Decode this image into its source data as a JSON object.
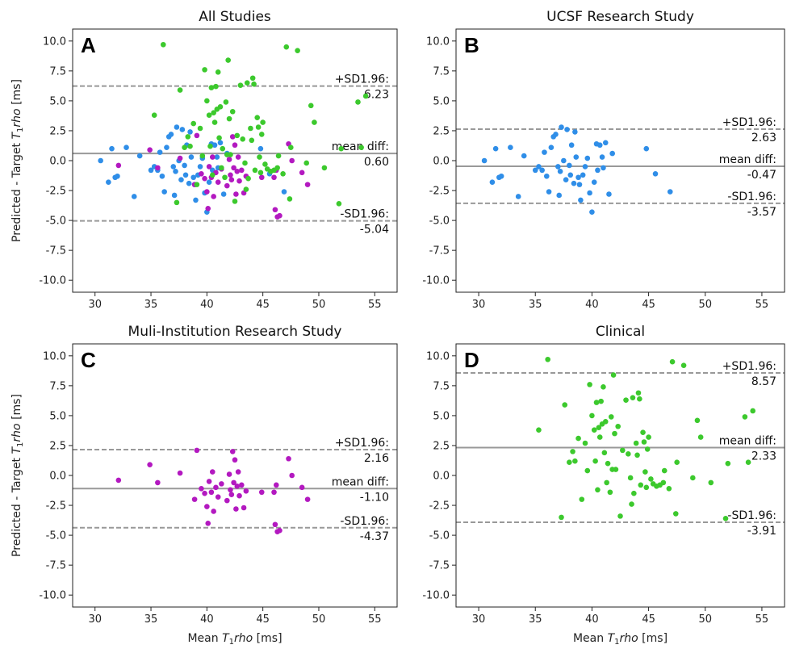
{
  "colors": {
    "ucsf": "#2f8ee8",
    "multi": "#b319c0",
    "clinical": "#3cc92d",
    "line": "#999999"
  },
  "axis_labels": {
    "y_prefix": "Predicted - Target ",
    "x_prefix": "Mean ",
    "sym_T": "T",
    "sym_sub": "1",
    "sym_rho": "rho",
    "unit": " [ms]"
  },
  "chart_data": [
    {
      "id": "A",
      "letter": "A",
      "title": "All Studies",
      "type": "scatter",
      "xlim": [
        28,
        57
      ],
      "ylim": [
        -11,
        11
      ],
      "xticks": [
        "30",
        "35",
        "40",
        "45",
        "50",
        "55"
      ],
      "yticks": [
        "10.0",
        "7.5",
        "5.0",
        "2.5",
        "0.0",
        "-2.5",
        "-5.0",
        "-7.5",
        "-10.0"
      ],
      "show_ylabel": true,
      "show_xlabel": false,
      "series_ref": [
        "ucsf",
        "multi",
        "clinical"
      ],
      "upper": {
        "label": "+SD1.96:",
        "value": "6.23",
        "y": 6.23
      },
      "mean": {
        "label": "mean diff:",
        "value": "0.60",
        "y": 0.6
      },
      "lower": {
        "label": "-SD1.96:",
        "value": "-5.04",
        "y": -5.04
      }
    },
    {
      "id": "B",
      "letter": "B",
      "title": "UCSF Research Study",
      "type": "scatter",
      "xlim": [
        28,
        57
      ],
      "ylim": [
        -11,
        11
      ],
      "xticks": [
        "30",
        "35",
        "40",
        "45",
        "50",
        "55"
      ],
      "yticks": [
        "10.0",
        "7.5",
        "5.0",
        "2.5",
        "0.0",
        "-2.5",
        "-5.0",
        "-7.5",
        "-10.0"
      ],
      "show_ylabel": false,
      "show_xlabel": false,
      "series_ref": [
        "ucsf"
      ],
      "upper": {
        "label": "+SD1.96:",
        "value": "2.63",
        "y": 2.63
      },
      "mean": {
        "label": "mean diff:",
        "value": "-0.47",
        "y": -0.47
      },
      "lower": {
        "label": "-SD1.96:",
        "value": "-3.57",
        "y": -3.57
      }
    },
    {
      "id": "C",
      "letter": "C",
      "title": "Muli-Institution Research Study",
      "type": "scatter",
      "xlim": [
        28,
        57
      ],
      "ylim": [
        -11,
        11
      ],
      "xticks": [
        "30",
        "35",
        "40",
        "45",
        "50",
        "55"
      ],
      "yticks": [
        "10.0",
        "7.5",
        "5.0",
        "2.5",
        "0.0",
        "-2.5",
        "-5.0",
        "-7.5",
        "-10.0"
      ],
      "show_ylabel": true,
      "show_xlabel": true,
      "series_ref": [
        "multi"
      ],
      "upper": {
        "label": "+SD1.96:",
        "value": "2.16",
        "y": 2.16
      },
      "mean": {
        "label": "mean diff:",
        "value": "-1.10",
        "y": -1.1
      },
      "lower": {
        "label": "-SD1.96:",
        "value": "-4.37",
        "y": -4.37
      }
    },
    {
      "id": "D",
      "letter": "D",
      "title": "Clinical",
      "type": "scatter",
      "xlim": [
        28,
        57
      ],
      "ylim": [
        -11,
        11
      ],
      "xticks": [
        "30",
        "35",
        "40",
        "45",
        "50",
        "55"
      ],
      "yticks": [
        "10.0",
        "7.5",
        "5.0",
        "2.5",
        "0.0",
        "-2.5",
        "-5.0",
        "-7.5",
        "-10.0"
      ],
      "show_ylabel": false,
      "show_xlabel": true,
      "series_ref": [
        "clinical"
      ],
      "upper": {
        "label": "+SD1.96:",
        "value": "8.57",
        "y": 8.57
      },
      "mean": {
        "label": "mean diff:",
        "value": "2.33",
        "y": 2.33
      },
      "lower": {
        "label": "-SD1.96:",
        "value": "-3.91",
        "y": -3.91
      }
    }
  ],
  "series": {
    "ucsf": [
      [
        30.5,
        0.0
      ],
      [
        31.2,
        -1.8
      ],
      [
        31.5,
        1.0
      ],
      [
        31.8,
        -1.4
      ],
      [
        32.0,
        -1.3
      ],
      [
        32.8,
        1.1
      ],
      [
        33.5,
        -3.0
      ],
      [
        34.0,
        0.4
      ],
      [
        35.0,
        -0.8
      ],
      [
        35.3,
        -0.5
      ],
      [
        35.6,
        -0.8
      ],
      [
        35.8,
        0.7
      ],
      [
        36.0,
        -1.3
      ],
      [
        36.2,
        -2.6
      ],
      [
        36.4,
        1.1
      ],
      [
        36.6,
        2.0
      ],
      [
        36.8,
        2.2
      ],
      [
        37.0,
        -0.5
      ],
      [
        37.1,
        -2.9
      ],
      [
        37.2,
        -0.9
      ],
      [
        37.3,
        2.8
      ],
      [
        37.5,
        0.0
      ],
      [
        37.7,
        -1.6
      ],
      [
        37.8,
        2.6
      ],
      [
        38.0,
        -0.4
      ],
      [
        38.1,
        -1.2
      ],
      [
        38.2,
        1.3
      ],
      [
        38.4,
        -1.9
      ],
      [
        38.5,
        2.4
      ],
      [
        38.6,
        0.3
      ],
      [
        38.8,
        -1.4
      ],
      [
        38.9,
        -2.0
      ],
      [
        39.0,
        -3.3
      ],
      [
        39.2,
        -1.2
      ],
      [
        39.4,
        -0.5
      ],
      [
        39.6,
        0.2
      ],
      [
        39.8,
        -2.7
      ],
      [
        40.0,
        -4.3
      ],
      [
        40.2,
        -1.8
      ],
      [
        40.4,
        1.4
      ],
      [
        40.5,
        -0.8
      ],
      [
        40.7,
        1.3
      ],
      [
        40.9,
        0.3
      ],
      [
        41.0,
        -0.6
      ],
      [
        41.2,
        1.5
      ],
      [
        41.5,
        -2.8
      ],
      [
        41.8,
        0.6
      ],
      [
        44.8,
        1.0
      ],
      [
        45.6,
        -1.1
      ],
      [
        46.9,
        -2.6
      ]
    ],
    "multi": [
      [
        32.1,
        -0.4
      ],
      [
        34.9,
        0.9
      ],
      [
        35.6,
        -0.6
      ],
      [
        37.6,
        0.2
      ],
      [
        38.9,
        -2.0
      ],
      [
        39.1,
        2.1
      ],
      [
        39.5,
        -1.1
      ],
      [
        39.8,
        -1.5
      ],
      [
        40.0,
        -2.6
      ],
      [
        40.1,
        -4.0
      ],
      [
        40.2,
        -0.5
      ],
      [
        40.4,
        -1.4
      ],
      [
        40.5,
        0.3
      ],
      [
        40.6,
        -3.0
      ],
      [
        40.8,
        -1.0
      ],
      [
        41.0,
        -1.8
      ],
      [
        41.3,
        -0.7
      ],
      [
        41.8,
        -2.1
      ],
      [
        42.0,
        0.1
      ],
      [
        42.1,
        -1.2
      ],
      [
        42.2,
        -1.6
      ],
      [
        42.3,
        2.0
      ],
      [
        42.4,
        -0.6
      ],
      [
        42.5,
        1.3
      ],
      [
        42.6,
        -2.8
      ],
      [
        42.7,
        -0.9
      ],
      [
        42.8,
        0.3
      ],
      [
        42.9,
        -1.7
      ],
      [
        43.1,
        -0.8
      ],
      [
        43.3,
        -2.7
      ],
      [
        43.5,
        -1.3
      ],
      [
        44.9,
        -1.4
      ],
      [
        46.0,
        -1.4
      ],
      [
        46.1,
        -4.1
      ],
      [
        46.2,
        -0.8
      ],
      [
        46.3,
        -4.7
      ],
      [
        46.5,
        -4.6
      ],
      [
        47.3,
        1.4
      ],
      [
        47.6,
        0.0
      ],
      [
        48.5,
        -1.0
      ],
      [
        49.0,
        -2.0
      ]
    ],
    "clinical": [
      [
        35.3,
        3.8
      ],
      [
        36.1,
        9.7
      ],
      [
        37.3,
        -3.5
      ],
      [
        37.6,
        5.9
      ],
      [
        38.0,
        1.1
      ],
      [
        38.3,
        2.0
      ],
      [
        38.5,
        1.2
      ],
      [
        38.8,
        3.1
      ],
      [
        39.1,
        -2.0
      ],
      [
        39.4,
        2.7
      ],
      [
        39.6,
        0.4
      ],
      [
        39.8,
        7.6
      ],
      [
        40.0,
        5.0
      ],
      [
        40.2,
        3.8
      ],
      [
        40.3,
        1.2
      ],
      [
        40.4,
        6.1
      ],
      [
        40.5,
        -1.2
      ],
      [
        40.6,
        4.0
      ],
      [
        40.7,
        3.2
      ],
      [
        40.8,
        6.2
      ],
      [
        40.9,
        4.3
      ],
      [
        41.0,
        7.4
      ],
      [
        41.1,
        1.9
      ],
      [
        41.2,
        4.5
      ],
      [
        41.3,
        -0.6
      ],
      [
        41.4,
        1.0
      ],
      [
        41.6,
        -1.4
      ],
      [
        41.7,
        4.9
      ],
      [
        41.8,
        0.5
      ],
      [
        41.9,
        8.4
      ],
      [
        42.0,
        3.5
      ],
      [
        42.1,
        0.5
      ],
      [
        42.3,
        4.1
      ],
      [
        42.5,
        -3.4
      ],
      [
        42.7,
        2.1
      ],
      [
        43.0,
        6.3
      ],
      [
        43.2,
        1.8
      ],
      [
        43.4,
        -0.2
      ],
      [
        43.5,
        -2.4
      ],
      [
        43.6,
        6.5
      ],
      [
        43.7,
        -1.5
      ],
      [
        43.9,
        2.7
      ],
      [
        44.0,
        1.7
      ],
      [
        44.1,
        6.9
      ],
      [
        44.2,
        6.4
      ],
      [
        44.3,
        -0.8
      ],
      [
        44.5,
        3.6
      ],
      [
        44.6,
        2.8
      ],
      [
        44.7,
        0.3
      ],
      [
        44.8,
        -1.0
      ],
      [
        44.9,
        2.2
      ],
      [
        45.0,
        3.2
      ],
      [
        45.2,
        -0.3
      ],
      [
        45.4,
        -0.7
      ],
      [
        45.7,
        -0.9
      ],
      [
        46.0,
        -0.8
      ],
      [
        46.3,
        -0.6
      ],
      [
        46.4,
        0.4
      ],
      [
        46.8,
        -1.1
      ],
      [
        47.1,
        9.5
      ],
      [
        47.4,
        -3.2
      ],
      [
        47.5,
        1.1
      ],
      [
        48.1,
        9.2
      ],
      [
        48.9,
        -0.2
      ],
      [
        49.3,
        4.6
      ],
      [
        49.6,
        3.2
      ],
      [
        50.5,
        -0.6
      ],
      [
        51.8,
        -3.6
      ],
      [
        52.0,
        1.0
      ],
      [
        53.5,
        4.9
      ],
      [
        53.8,
        1.1
      ],
      [
        54.2,
        5.4
      ]
    ]
  }
}
